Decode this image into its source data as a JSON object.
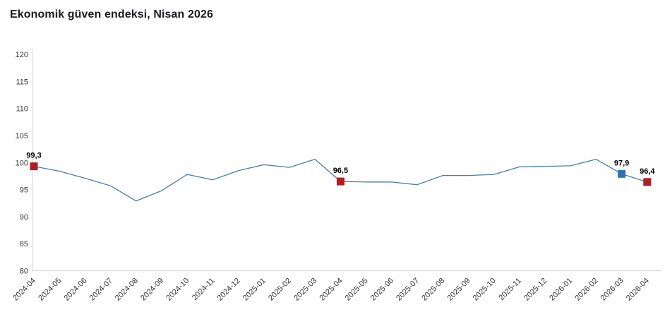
{
  "header": {
    "title": "Ekonomik güven endeksi, Nisan 2026"
  },
  "chart_data": {
    "type": "line",
    "title": "Ekonomik güven endeksi, Nisan 2026",
    "x": [
      "2024-04",
      "2024-05",
      "2024-06",
      "2024-07",
      "2024-08",
      "2024-09",
      "2024-10",
      "2024-11",
      "2024-12",
      "2025-01",
      "2025-02",
      "2025-03",
      "2025-04",
      "2025-05",
      "2025-06",
      "2025-07",
      "2025-08",
      "2025-09",
      "2025-10",
      "2025-11",
      "2025-12",
      "2026-01",
      "2026-02",
      "2026-03",
      "2026-04"
    ],
    "values": [
      99.3,
      98.4,
      97.1,
      95.7,
      92.9,
      94.8,
      97.8,
      96.8,
      98.5,
      99.6,
      99.1,
      100.6,
      96.5,
      96.4,
      96.4,
      95.9,
      97.6,
      97.6,
      97.8,
      99.2,
      99.3,
      99.4,
      100.6,
      97.9,
      96.4
    ],
    "ylim": [
      80,
      120
    ],
    "ytick_step": 5,
    "grid": false,
    "legend": "none",
    "xlabel": "",
    "ylabel": "",
    "line_color": "#4a7ca8",
    "axis_line_color": "#d6d6d6",
    "axis_text_color": "#333333",
    "highlight_markers": [
      {
        "x": "2024-04",
        "value": 99.3,
        "label": "99,3",
        "color": "#b01e24"
      },
      {
        "x": "2025-04",
        "value": 96.5,
        "label": "96,5",
        "color": "#b01e24"
      },
      {
        "x": "2026-03",
        "value": 97.9,
        "label": "97,9",
        "color": "#2e73b0"
      },
      {
        "x": "2026-04",
        "value": 96.4,
        "label": "96,4",
        "color": "#b01e24"
      }
    ]
  }
}
